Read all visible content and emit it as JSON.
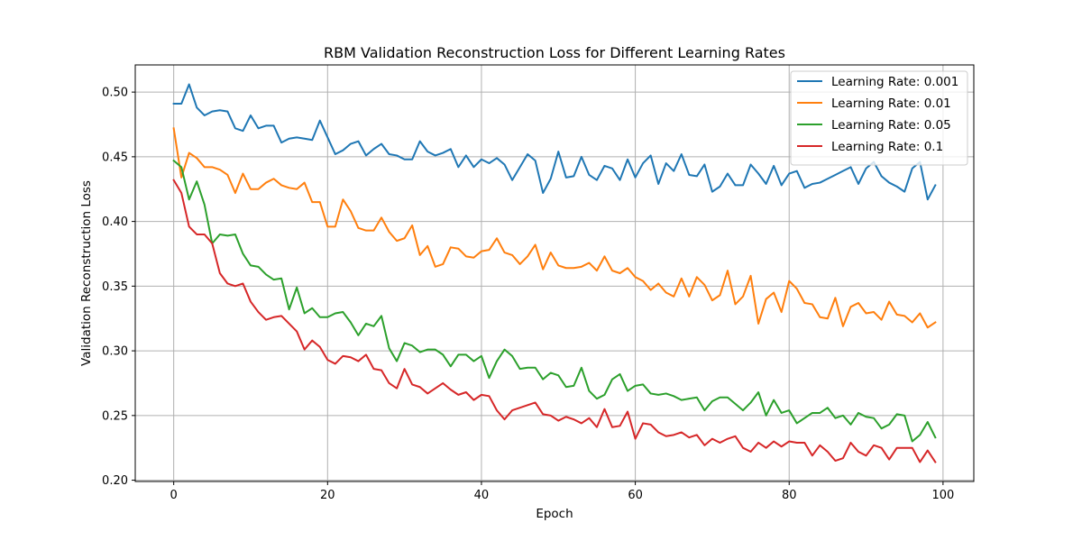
{
  "chart_data": {
    "type": "line",
    "title": "RBM Validation Reconstruction Loss for Different Learning Rates",
    "xlabel": "Epoch",
    "ylabel": "Validation Reconstruction Loss",
    "xlim": [
      -5,
      104
    ],
    "ylim": [
      0.199,
      0.521
    ],
    "xticks": [
      0,
      20,
      40,
      60,
      80,
      100
    ],
    "yticks": [
      0.2,
      0.25,
      0.3,
      0.35,
      0.4,
      0.45,
      0.5
    ],
    "xtick_labels": [
      "0",
      "20",
      "40",
      "60",
      "80",
      "100"
    ],
    "ytick_labels": [
      "0.20",
      "0.25",
      "0.30",
      "0.35",
      "0.40",
      "0.45",
      "0.50"
    ],
    "grid": true,
    "legend_position": "top-right",
    "x": [
      0,
      1,
      2,
      3,
      4,
      5,
      6,
      7,
      8,
      9,
      10,
      11,
      12,
      13,
      14,
      15,
      16,
      17,
      18,
      19,
      20,
      21,
      22,
      23,
      24,
      25,
      26,
      27,
      28,
      29,
      30,
      31,
      32,
      33,
      34,
      35,
      36,
      37,
      38,
      39,
      40,
      41,
      42,
      43,
      44,
      45,
      46,
      47,
      48,
      49,
      50,
      51,
      52,
      53,
      54,
      55,
      56,
      57,
      58,
      59,
      60,
      61,
      62,
      63,
      64,
      65,
      66,
      67,
      68,
      69,
      70,
      71,
      72,
      73,
      74,
      75,
      76,
      77,
      78,
      79,
      80,
      81,
      82,
      83,
      84,
      85,
      86,
      87,
      88,
      89,
      90,
      91,
      92,
      93,
      94,
      95,
      96,
      97,
      98,
      99
    ],
    "series": [
      {
        "name": "Learning Rate: 0.001",
        "color": "#1f77b4",
        "values": [
          0.491,
          0.491,
          0.506,
          0.488,
          0.482,
          0.485,
          0.486,
          0.485,
          0.472,
          0.47,
          0.482,
          0.472,
          0.474,
          0.474,
          0.461,
          0.464,
          0.465,
          0.464,
          0.463,
          0.478,
          0.465,
          0.452,
          0.455,
          0.46,
          0.462,
          0.451,
          0.456,
          0.46,
          0.452,
          0.451,
          0.448,
          0.448,
          0.462,
          0.454,
          0.451,
          0.453,
          0.456,
          0.442,
          0.451,
          0.442,
          0.448,
          0.445,
          0.449,
          0.444,
          0.432,
          0.442,
          0.452,
          0.447,
          0.422,
          0.433,
          0.454,
          0.434,
          0.435,
          0.45,
          0.436,
          0.432,
          0.443,
          0.441,
          0.432,
          0.448,
          0.434,
          0.445,
          0.451,
          0.429,
          0.445,
          0.439,
          0.452,
          0.436,
          0.435,
          0.444,
          0.423,
          0.427,
          0.437,
          0.428,
          0.428,
          0.444,
          0.437,
          0.429,
          0.443,
          0.428,
          0.437,
          0.439,
          0.426,
          0.429,
          0.43,
          0.433,
          0.436,
          0.439,
          0.442,
          0.429,
          0.441,
          0.446,
          0.435,
          0.43,
          0.427,
          0.423,
          0.441,
          0.446,
          0.417,
          0.428
        ]
      },
      {
        "name": "Learning Rate: 0.01",
        "color": "#ff7f0e",
        "values": [
          0.472,
          0.434,
          0.453,
          0.449,
          0.442,
          0.442,
          0.44,
          0.436,
          0.422,
          0.437,
          0.425,
          0.425,
          0.43,
          0.433,
          0.428,
          0.426,
          0.425,
          0.43,
          0.415,
          0.415,
          0.396,
          0.396,
          0.417,
          0.408,
          0.395,
          0.393,
          0.393,
          0.403,
          0.392,
          0.385,
          0.387,
          0.397,
          0.374,
          0.381,
          0.365,
          0.367,
          0.38,
          0.379,
          0.373,
          0.372,
          0.377,
          0.378,
          0.387,
          0.376,
          0.374,
          0.367,
          0.373,
          0.382,
          0.363,
          0.376,
          0.366,
          0.364,
          0.364,
          0.365,
          0.368,
          0.362,
          0.373,
          0.362,
          0.36,
          0.364,
          0.357,
          0.354,
          0.347,
          0.352,
          0.345,
          0.342,
          0.356,
          0.342,
          0.357,
          0.351,
          0.339,
          0.343,
          0.362,
          0.336,
          0.342,
          0.358,
          0.321,
          0.34,
          0.345,
          0.33,
          0.354,
          0.348,
          0.337,
          0.336,
          0.326,
          0.325,
          0.341,
          0.319,
          0.334,
          0.337,
          0.329,
          0.33,
          0.324,
          0.338,
          0.328,
          0.327,
          0.322,
          0.329,
          0.318,
          0.322
        ]
      },
      {
        "name": "Learning Rate: 0.05",
        "color": "#2ca02c",
        "values": [
          0.447,
          0.442,
          0.417,
          0.431,
          0.413,
          0.383,
          0.39,
          0.389,
          0.39,
          0.375,
          0.366,
          0.365,
          0.359,
          0.355,
          0.356,
          0.332,
          0.349,
          0.329,
          0.333,
          0.326,
          0.326,
          0.329,
          0.33,
          0.322,
          0.312,
          0.321,
          0.319,
          0.327,
          0.302,
          0.292,
          0.306,
          0.304,
          0.299,
          0.301,
          0.301,
          0.297,
          0.288,
          0.297,
          0.297,
          0.292,
          0.296,
          0.279,
          0.292,
          0.301,
          0.296,
          0.286,
          0.287,
          0.287,
          0.278,
          0.283,
          0.281,
          0.272,
          0.273,
          0.287,
          0.269,
          0.263,
          0.266,
          0.278,
          0.282,
          0.269,
          0.273,
          0.274,
          0.267,
          0.266,
          0.267,
          0.265,
          0.262,
          0.263,
          0.264,
          0.254,
          0.261,
          0.264,
          0.264,
          0.259,
          0.254,
          0.26,
          0.268,
          0.25,
          0.262,
          0.252,
          0.254,
          0.244,
          0.248,
          0.252,
          0.252,
          0.256,
          0.248,
          0.25,
          0.243,
          0.252,
          0.249,
          0.248,
          0.24,
          0.243,
          0.251,
          0.25,
          0.23,
          0.235,
          0.245,
          0.233
        ]
      },
      {
        "name": "Learning Rate: 0.1",
        "color": "#d62728",
        "values": [
          0.432,
          0.422,
          0.396,
          0.39,
          0.39,
          0.383,
          0.36,
          0.352,
          0.35,
          0.352,
          0.338,
          0.33,
          0.324,
          0.326,
          0.327,
          0.321,
          0.315,
          0.301,
          0.308,
          0.303,
          0.293,
          0.29,
          0.296,
          0.295,
          0.292,
          0.297,
          0.286,
          0.285,
          0.275,
          0.271,
          0.286,
          0.274,
          0.272,
          0.267,
          0.271,
          0.275,
          0.27,
          0.266,
          0.268,
          0.262,
          0.266,
          0.265,
          0.254,
          0.247,
          0.254,
          0.256,
          0.258,
          0.26,
          0.251,
          0.25,
          0.246,
          0.249,
          0.247,
          0.244,
          0.248,
          0.241,
          0.255,
          0.241,
          0.242,
          0.253,
          0.232,
          0.244,
          0.243,
          0.237,
          0.234,
          0.235,
          0.237,
          0.233,
          0.235,
          0.227,
          0.232,
          0.229,
          0.232,
          0.234,
          0.225,
          0.222,
          0.229,
          0.225,
          0.23,
          0.226,
          0.23,
          0.229,
          0.229,
          0.219,
          0.227,
          0.222,
          0.215,
          0.217,
          0.229,
          0.222,
          0.219,
          0.227,
          0.225,
          0.216,
          0.225,
          0.225,
          0.225,
          0.214,
          0.223,
          0.214
        ]
      }
    ]
  }
}
